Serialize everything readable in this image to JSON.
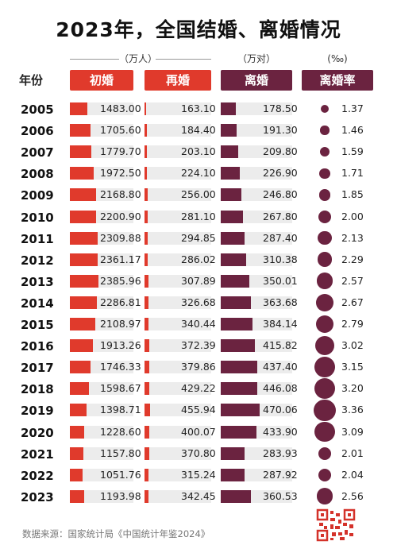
{
  "title": "2023年，全国结婚、离婚情况",
  "units": {
    "marriage": "（万人）",
    "divorce": "（万对）",
    "rate": "(‰)"
  },
  "headers": {
    "year": "年份",
    "first": "初婚",
    "re": "再婚",
    "divorce": "离婚",
    "rate": "离婚率"
  },
  "colors": {
    "red": "#e03a2c",
    "maroon": "#6b2340",
    "track": "#ececec"
  },
  "source": "数据来源：国家统计局《中国统计年鉴2024》",
  "chart_data": {
    "type": "table",
    "title": "2023年，全国结婚、离婚情况",
    "columns": [
      "年份",
      "初婚",
      "再婚",
      "离婚",
      "离婚率"
    ],
    "rows": [
      {
        "year": "2005",
        "first": "1483.00",
        "re": "163.10",
        "divorce": "178.50",
        "rate": "1.37"
      },
      {
        "year": "2006",
        "first": "1705.60",
        "re": "184.40",
        "divorce": "191.30",
        "rate": "1.46"
      },
      {
        "year": "2007",
        "first": "1779.70",
        "re": "203.10",
        "divorce": "209.80",
        "rate": "1.59"
      },
      {
        "year": "2008",
        "first": "1972.50",
        "re": "224.10",
        "divorce": "226.90",
        "rate": "1.71"
      },
      {
        "year": "2009",
        "first": "2168.80",
        "re": "256.00",
        "divorce": "246.80",
        "rate": "1.85"
      },
      {
        "year": "2010",
        "first": "2200.90",
        "re": "281.10",
        "divorce": "267.80",
        "rate": "2.00"
      },
      {
        "year": "2011",
        "first": "2309.88",
        "re": "294.85",
        "divorce": "287.40",
        "rate": "2.13"
      },
      {
        "year": "2012",
        "first": "2361.17",
        "re": "286.02",
        "divorce": "310.38",
        "rate": "2.29"
      },
      {
        "year": "2013",
        "first": "2385.96",
        "re": "307.89",
        "divorce": "350.01",
        "rate": "2.57"
      },
      {
        "year": "2014",
        "first": "2286.81",
        "re": "326.68",
        "divorce": "363.68",
        "rate": "2.67"
      },
      {
        "year": "2015",
        "first": "2108.97",
        "re": "340.44",
        "divorce": "384.14",
        "rate": "2.79"
      },
      {
        "year": "2016",
        "first": "1913.26",
        "re": "372.39",
        "divorce": "415.82",
        "rate": "3.02"
      },
      {
        "year": "2017",
        "first": "1746.33",
        "re": "379.86",
        "divorce": "437.40",
        "rate": "3.15"
      },
      {
        "year": "2018",
        "first": "1598.67",
        "re": "429.22",
        "divorce": "446.08",
        "rate": "3.20"
      },
      {
        "year": "2019",
        "first": "1398.71",
        "re": "455.94",
        "divorce": "470.06",
        "rate": "3.36"
      },
      {
        "year": "2020",
        "first": "1228.60",
        "re": "400.07",
        "divorce": "433.90",
        "rate": "3.09"
      },
      {
        "year": "2021",
        "first": "1157.80",
        "re": "370.80",
        "divorce": "283.93",
        "rate": "2.01"
      },
      {
        "year": "2022",
        "first": "1051.76",
        "re": "315.24",
        "divorce": "287.92",
        "rate": "2.04"
      },
      {
        "year": "2023",
        "first": "1193.98",
        "re": "342.45",
        "divorce": "360.53",
        "rate": "2.56"
      }
    ]
  }
}
